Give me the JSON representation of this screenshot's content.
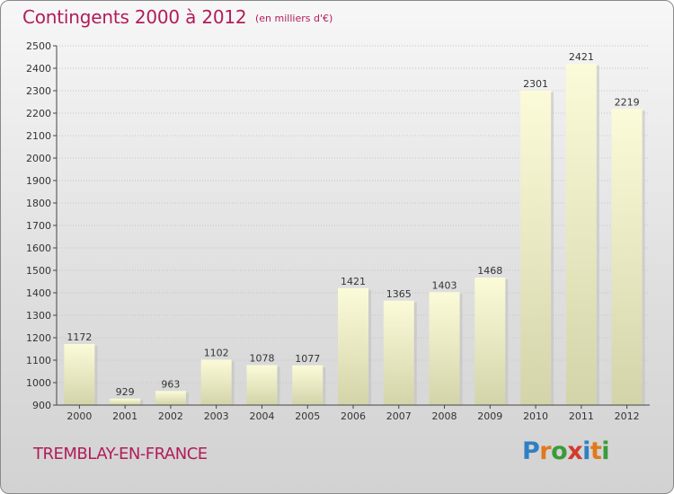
{
  "header": {
    "title": "Contingents 2000 à 2012",
    "subtitle": "(en milliers d'€)"
  },
  "footer": {
    "commune": "TREMBLAY-EN-FRANCE",
    "logo": "Proxiti"
  },
  "chart_data": {
    "type": "bar",
    "categories": [
      "2000",
      "2001",
      "2002",
      "2003",
      "2004",
      "2005",
      "2006",
      "2007",
      "2008",
      "2009",
      "2010",
      "2011",
      "2012"
    ],
    "values": [
      1172,
      929,
      963,
      1102,
      1078,
      1077,
      1421,
      1365,
      1403,
      1468,
      2301,
      2421,
      2219
    ],
    "ylim": [
      900,
      2500
    ],
    "ytick_step": 100,
    "grid": true,
    "colors": {
      "bar_top": "#fbfbd9",
      "bar_bottom": "#d4d4aa",
      "grid": "#c4c4c4",
      "axis": "#444444",
      "text": "#333333",
      "accent": "#b21c5a"
    }
  }
}
